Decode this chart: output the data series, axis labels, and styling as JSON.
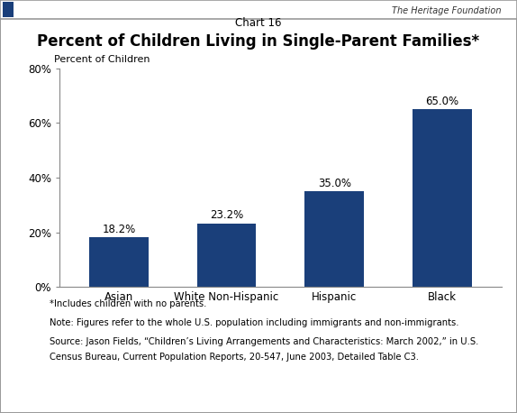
{
  "chart_label": "Chart 16",
  "title": "Percent of Children Living in Single-Parent Families*",
  "ylabel": "Percent of Children",
  "categories": [
    "Asian",
    "White Non-Hispanic",
    "Hispanic",
    "Black"
  ],
  "values": [
    18.2,
    23.2,
    35.0,
    65.0
  ],
  "bar_color": "#1a3f7a",
  "ylim": [
    0,
    80
  ],
  "yticks": [
    0,
    20,
    40,
    60,
    80
  ],
  "ytick_labels": [
    "0%",
    "20%",
    "40%",
    "60%",
    "80%"
  ],
  "value_labels": [
    "18.2%",
    "23.2%",
    "35.0%",
    "65.0%"
  ],
  "footnote1": "*Includes children with no parents.",
  "footnote2": "Note: Figures refer to the whole U.S. population including immigrants and non-immigrants.",
  "footnote3": "Source: Jason Fields, “Children’s Living Arrangements and Characteristics: March 2002,” in U.S.",
  "footnote4": "Census Bureau, Current Population Reports, 20-547, June 2003, Detailed Table C3.",
  "heritage_text": "The Heritage Foundation",
  "fig_background": "#ffffff",
  "top_bar_color": "#d0cfc8",
  "border_color": "#999999",
  "bar_width": 0.55
}
